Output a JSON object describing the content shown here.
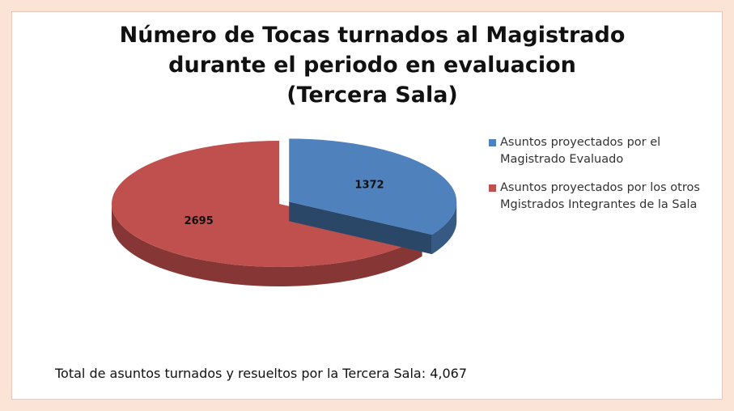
{
  "chart_data": {
    "type": "pie",
    "title": [
      "Número de Tocas turnados al Magistrado",
      "durante el periodo en evaluacion",
      "(Tercera Sala)"
    ],
    "categories": [
      "Asuntos proyectados por el Magistrado Evaluado",
      "Asuntos proyectados por los otros Mgistrados Integrantes de la Sala"
    ],
    "values": [
      1372,
      2695
    ],
    "colors": [
      "#4f81bd",
      "#c0504d"
    ],
    "legend": "right",
    "annotation": "Total de asuntos turnados y resueltos por la Tercera Sala: 4,067"
  }
}
